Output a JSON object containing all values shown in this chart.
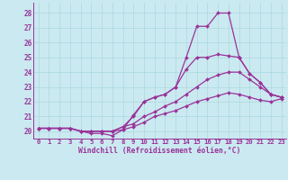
{
  "xlabel": "Windchill (Refroidissement éolien,°C)",
  "background_color": "#cbe9f0",
  "line_color": "#993399",
  "grid_color": "#aad8e0",
  "xlim": [
    -0.5,
    23.5
  ],
  "ylim": [
    19.5,
    28.7
  ],
  "xticks": [
    0,
    1,
    2,
    3,
    4,
    5,
    6,
    7,
    8,
    9,
    10,
    11,
    12,
    13,
    14,
    15,
    16,
    17,
    18,
    19,
    20,
    21,
    22,
    23
  ],
  "yticks": [
    20,
    21,
    22,
    23,
    24,
    25,
    26,
    27,
    28
  ],
  "series": [
    {
      "x": [
        0,
        1,
        2,
        3,
        4,
        5,
        6,
        7,
        8,
        9,
        10,
        11,
        12,
        13,
        14,
        15,
        16,
        17,
        18,
        19,
        20,
        21,
        22,
        23
      ],
      "y": [
        20.2,
        20.2,
        20.2,
        20.2,
        20.0,
        19.85,
        19.85,
        19.7,
        20.1,
        21.1,
        22.0,
        22.3,
        22.5,
        23.0,
        25.0,
        27.1,
        27.1,
        28.0,
        28.0,
        25.0,
        23.9,
        23.3,
        22.5,
        22.3
      ]
    },
    {
      "x": [
        0,
        1,
        2,
        3,
        4,
        5,
        6,
        7,
        8,
        9,
        10,
        11,
        12,
        13,
        14,
        15,
        16,
        17,
        18,
        19,
        20,
        21,
        22,
        23
      ],
      "y": [
        20.2,
        20.2,
        20.2,
        20.2,
        20.0,
        20.0,
        20.0,
        20.0,
        20.3,
        21.0,
        22.0,
        22.3,
        22.5,
        23.0,
        24.2,
        25.0,
        25.0,
        25.2,
        25.1,
        25.0,
        23.9,
        23.3,
        22.5,
        22.3
      ]
    },
    {
      "x": [
        0,
        1,
        2,
        3,
        4,
        5,
        6,
        7,
        8,
        9,
        10,
        11,
        12,
        13,
        14,
        15,
        16,
        17,
        18,
        19,
        20,
        21,
        22,
        23
      ],
      "y": [
        20.2,
        20.2,
        20.2,
        20.2,
        20.0,
        20.0,
        20.0,
        20.0,
        20.3,
        20.5,
        21.0,
        21.3,
        21.7,
        22.0,
        22.5,
        23.0,
        23.5,
        23.8,
        24.0,
        24.0,
        23.5,
        23.0,
        22.5,
        22.3
      ]
    },
    {
      "x": [
        0,
        1,
        2,
        3,
        4,
        5,
        6,
        7,
        8,
        9,
        10,
        11,
        12,
        13,
        14,
        15,
        16,
        17,
        18,
        19,
        20,
        21,
        22,
        23
      ],
      "y": [
        20.2,
        20.2,
        20.2,
        20.2,
        20.0,
        20.0,
        20.0,
        20.0,
        20.1,
        20.3,
        20.6,
        21.0,
        21.2,
        21.4,
        21.7,
        22.0,
        22.2,
        22.4,
        22.6,
        22.5,
        22.3,
        22.1,
        22.0,
        22.2
      ]
    }
  ]
}
